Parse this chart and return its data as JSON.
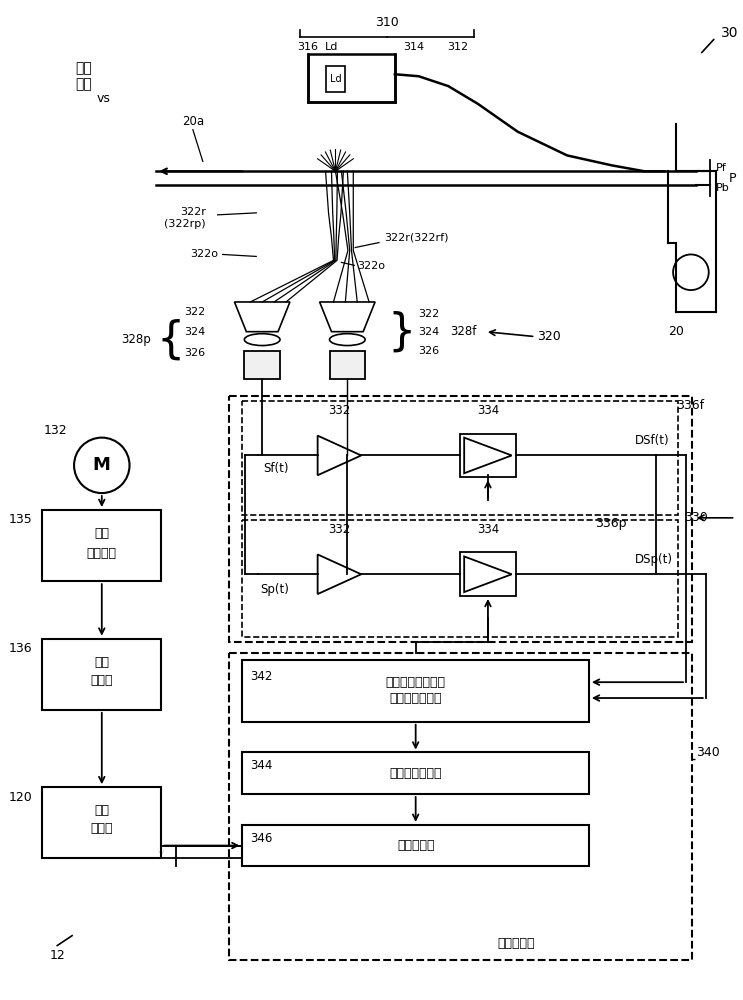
{
  "bg_color": "#ffffff",
  "lc": "#000000",
  "labels": {
    "transport_dir": "输送\n方向",
    "vs": "vs",
    "l20a": "20a",
    "l20": "20",
    "l30": "30",
    "l12": "12",
    "l120": "120",
    "l132": "132",
    "l135": "135",
    "l136": "136",
    "l310": "310",
    "l312": "312",
    "l314": "314",
    "l316": "316",
    "lLd": "Ld",
    "lPf": "Pf",
    "lPb": "Pb",
    "lP": "P",
    "l322r_p": "322r\n(322rp)",
    "l322o_L": "322o",
    "l322o_R": "322o",
    "l322rf": "322r(322rf)",
    "l322": "322",
    "l324": "324",
    "l326": "326",
    "l328p": "328p",
    "l328f": "328f",
    "l320": "320",
    "l332t": "332",
    "l334t": "334",
    "l332b": "332",
    "l334b": "334",
    "l336f": "336f",
    "l336p": "336p",
    "l330": "330",
    "lSft": "Sf(t)",
    "lSpt": "Sp(t)",
    "lDSft": "DSf(t)",
    "lDSpt": "DSp(t)",
    "l342": "342",
    "l344": "344",
    "l346": "346",
    "l340": "340",
    "b342a": "扩散反射光取得部",
    "b342b": "（受光控制部）",
    "b344": "滞后时间分析部",
    "b346": "速度计算部",
    "b120a": "输送",
    "b120b": "控制部",
    "b135a": "电机",
    "b135b": "驱动电路",
    "b136a": "电机",
    "b136b": "控制部",
    "lspeed": "速度检测部"
  }
}
